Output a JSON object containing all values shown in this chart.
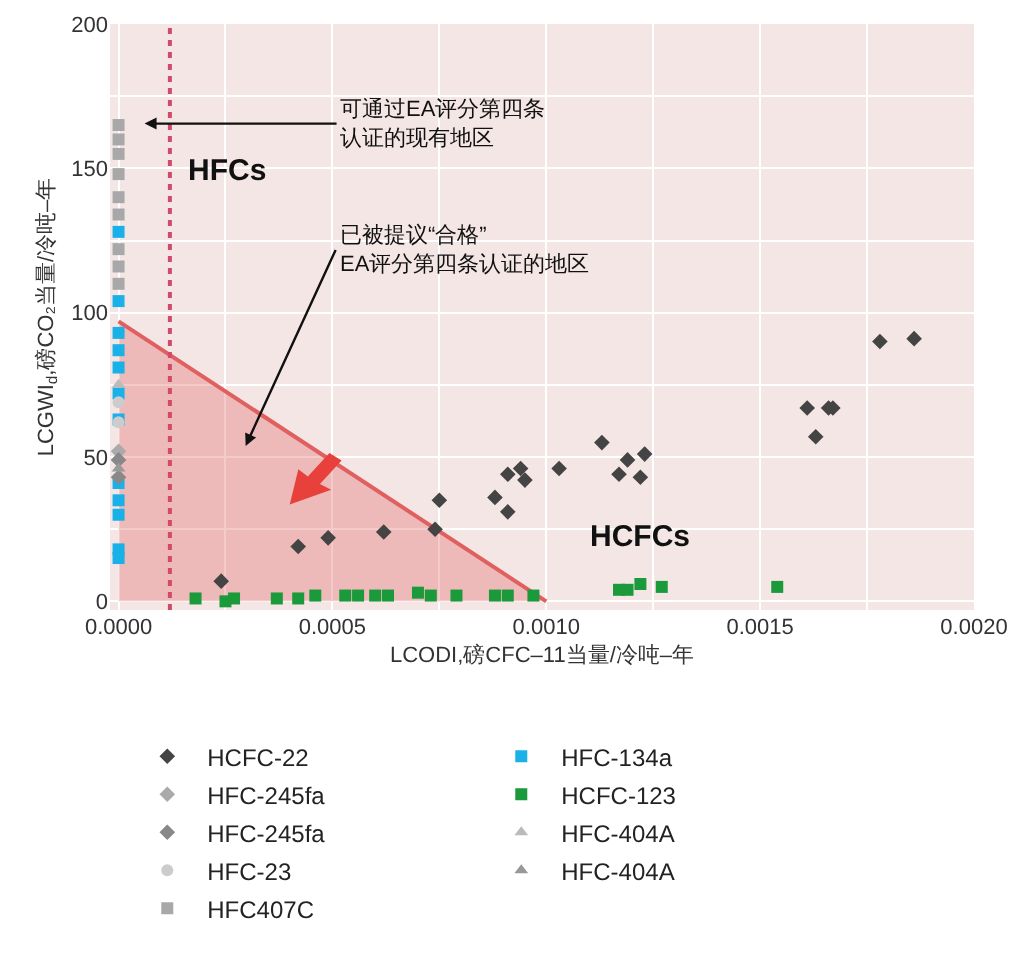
{
  "chart_data": {
    "type": "scatter",
    "xlabel": "LCODI,磅CFC–11当量/冷吨–年",
    "ylabel": "LCGWI$_{d}$,磅CO₂当量/冷吨–年",
    "xlim": [
      -2e-05,
      0.002
    ],
    "ylim": [
      -3,
      200
    ],
    "xticks": [
      {
        "value": 0,
        "label": "0.0000"
      },
      {
        "value": 0.00025,
        "label": null
      },
      {
        "value": 0.0005,
        "label": "0.0005"
      },
      {
        "value": 0.00075,
        "label": null
      },
      {
        "value": 0.001,
        "label": "0.0010"
      },
      {
        "value": 0.00125,
        "label": null
      },
      {
        "value": 0.0015,
        "label": "0.0015"
      },
      {
        "value": 0.00175,
        "label": null
      },
      {
        "value": 0.002,
        "label": "0.0020"
      }
    ],
    "yticks": [
      0,
      {
        "value": 25,
        "label": null
      },
      50,
      {
        "value": 75,
        "label": null
      },
      100,
      {
        "value": 125,
        "label": null
      },
      150,
      {
        "value": 175,
        "label": null
      },
      200
    ],
    "grid": true,
    "legend": "bottom",
    "ref_lines": [
      {
        "axis": "x",
        "value": 0.00012,
        "color": "#d04a6a",
        "line_style": "dotted"
      }
    ],
    "annotations": [
      "可通过EA评分第四条认证的现有地区",
      "已被提议“合格”EA评分第四条认证的地区",
      "HFCs",
      "HCFCs"
    ],
    "series": [
      {
        "type": "area",
        "color": "#e06060",
        "x": [
          0,
          0.001
        ],
        "values": [
          97,
          0
        ]
      },
      {
        "name": "HCFC-22",
        "color": "#444444",
        "marker": "diamond",
        "x": [
          0.00024,
          0.00042,
          0.00049,
          0.00062,
          0.00074,
          0.00075,
          0.00088,
          0.00091,
          0.00091,
          0.00094,
          0.00095,
          0.00103,
          0.00113,
          0.00117,
          0.00119,
          0.00122,
          0.00123,
          0.00161,
          0.00163,
          0.00166,
          0.00167,
          0.00178,
          0.00186
        ],
        "values": [
          7,
          19,
          22,
          24,
          25,
          35,
          36,
          31,
          44,
          46,
          42,
          46,
          55,
          44,
          49,
          43,
          51,
          67,
          57,
          67,
          67,
          90,
          91
        ]
      },
      {
        "name": "HFC-134a",
        "color": "#1ab0e8",
        "marker": "square",
        "x": [
          0,
          0,
          0,
          0,
          0,
          0,
          0,
          0,
          0,
          0,
          0,
          0
        ],
        "values": [
          128,
          104,
          93,
          87,
          81,
          72,
          63,
          41,
          35,
          30,
          18,
          15
        ]
      },
      {
        "name": "HFC-245fa",
        "color": "#aaaaaa",
        "marker": "diamond",
        "x": [
          0
        ],
        "values": [
          52
        ]
      },
      {
        "name": "HCFC-123",
        "color": "#1a9a3a",
        "marker": "square",
        "x": [
          0.00018,
          0.00025,
          0.00027,
          0.00037,
          0.00042,
          0.00046,
          0.00053,
          0.00056,
          0.0006,
          0.00063,
          0.0007,
          0.00073,
          0.00079,
          0.00088,
          0.00091,
          0.00097,
          0.00117,
          0.00119,
          0.00122,
          0.00127,
          0.00154
        ],
        "values": [
          1,
          0,
          1,
          1,
          1,
          2,
          2,
          2,
          2,
          2,
          3,
          2,
          2,
          2,
          2,
          2,
          4,
          4,
          6,
          5,
          5
        ]
      },
      {
        "name": "HFC-245fa",
        "color": "#888888",
        "marker": "diamond",
        "x": [
          0,
          0
        ],
        "values": [
          49,
          43
        ]
      },
      {
        "name": "HFC-404A",
        "color": "#bbbbbb",
        "marker": "triangle",
        "x": [
          0
        ],
        "values": [
          75
        ]
      },
      {
        "name": "HFC-23",
        "color": "#cccccc",
        "marker": "circle",
        "x": [
          0,
          0
        ],
        "values": [
          62,
          69
        ]
      },
      {
        "name": "HFC-404A",
        "color": "#999999",
        "marker": "triangle",
        "x": [
          0
        ],
        "values": [
          46
        ]
      },
      {
        "name": "HFC407C",
        "color": "#a8a8a8",
        "marker": "square",
        "x": [
          0,
          0,
          0,
          0,
          0,
          0,
          0,
          0,
          0
        ],
        "values": [
          165,
          160,
          155,
          148,
          140,
          134,
          122,
          116,
          110
        ]
      }
    ]
  }
}
